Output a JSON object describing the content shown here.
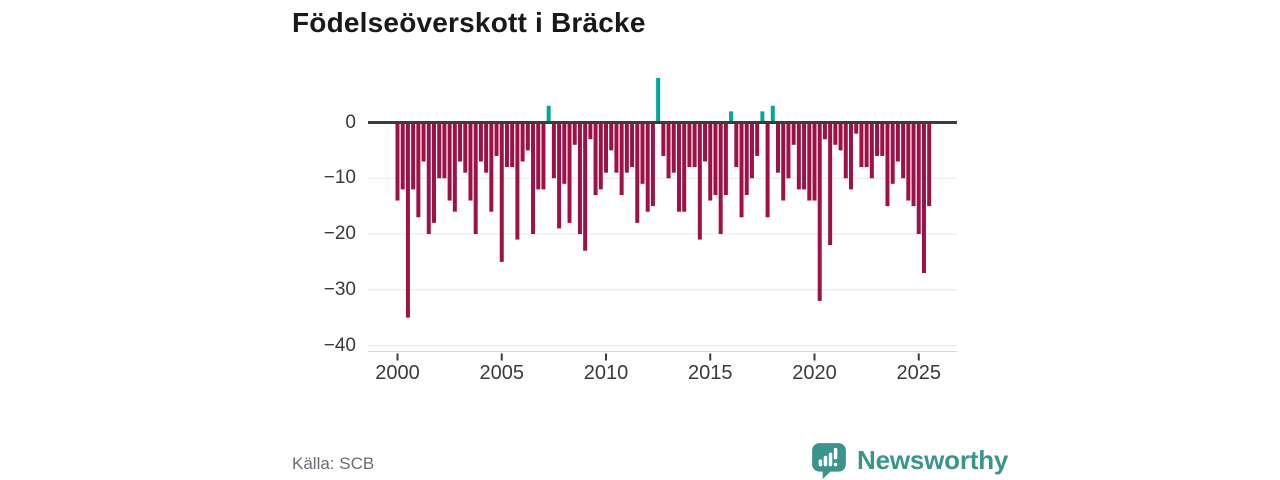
{
  "title": "Födelseöverskott i Bräcke",
  "source": "Källa: SCB",
  "brand": {
    "name": "Newsworthy",
    "color": "#3a948e"
  },
  "colors": {
    "background": "#ffffff",
    "negative_bar": "#9e1146",
    "positive_bar": "#00a79b",
    "zero_line": "#3b3b3b",
    "gridline": "#e7e7e7",
    "axis_line": "#d8d8d8",
    "tick_mark": "#3b3b3b",
    "tick_label": "#3a3a3a",
    "title_text": "#191919",
    "source_text": "#6b6b76"
  },
  "chart_data": {
    "type": "bar",
    "title": "Födelseöverskott i Bräcke",
    "x_unit": "quarter",
    "start": "2000Q1",
    "end": "2025Q3",
    "grid": "horizontal",
    "legend": "none",
    "ylim": [
      -40,
      9
    ],
    "y_ticks": [
      0,
      -10,
      -20,
      -30,
      -40
    ],
    "y_tick_labels": [
      "0",
      "−10",
      "−20",
      "−30",
      "−40"
    ],
    "x_tick_years": [
      2000,
      2005,
      2010,
      2015,
      2020,
      2025
    ],
    "x_tick_labels": [
      "2000",
      "2005",
      "2010",
      "2015",
      "2020",
      "2025"
    ],
    "series": [
      {
        "name": "Födelseöverskott",
        "values": [
          -14,
          -12,
          -35,
          -12,
          -17,
          -7,
          -20,
          -18,
          -10,
          -10,
          -14,
          -16,
          -7,
          -9,
          -14,
          -20,
          -7,
          -9,
          -16,
          -6,
          -25,
          -8,
          -8,
          -21,
          -7,
          -5,
          -20,
          -12,
          -12,
          3,
          -10,
          -19,
          -11,
          -18,
          -4,
          -20,
          -23,
          -3,
          -13,
          -12,
          -9,
          -5,
          -9,
          -13,
          -9,
          -8,
          -18,
          -11,
          -16,
          -15,
          8,
          -6,
          -10,
          -9,
          -16,
          -16,
          -8,
          -8,
          -21,
          -7,
          -14,
          -13,
          -20,
          -13,
          2,
          -8,
          -17,
          -13,
          -10,
          -6,
          2,
          -17,
          3,
          -9,
          -14,
          -10,
          -4,
          -12,
          -12,
          -14,
          -14,
          -32,
          -3,
          -22,
          -4,
          -5,
          -10,
          -12,
          -2,
          -8,
          -8,
          -10,
          -6,
          -6,
          -15,
          -11,
          -7,
          -10,
          -14,
          -15,
          -20,
          -27,
          -15
        ]
      }
    ]
  }
}
